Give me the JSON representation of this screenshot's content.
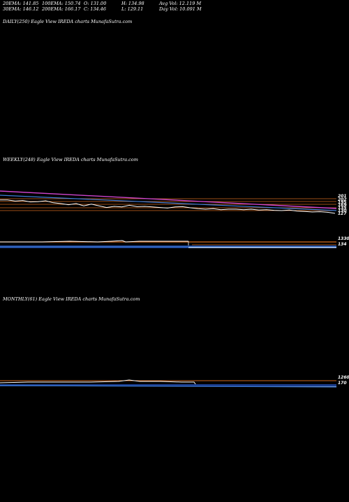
{
  "header": {
    "row1": [
      "20EMA: 141.85",
      "100EMA: 150.74",
      "O: 131.00",
      "H: 134.98",
      "Avg Vol: 12.119 M"
    ],
    "row2": [
      "30EMA: 146.12",
      "200EMA: 166.17",
      "C: 134.46",
      "L: 129.11",
      "Day Vol: 10.091 M"
    ]
  },
  "panels": {
    "daily": {
      "title": "DAILY(250) Eagle  View  IREDA charts MunafaSutra.com"
    },
    "weekly": {
      "title": "WEEKLY(248) Eagle  View  IREDA charts MunafaSutra.com"
    },
    "monthly": {
      "title": "MONTHLY(61) Eagle  View  IREDA charts MunafaSutra.com"
    }
  },
  "chart_data": [
    {
      "type": "line",
      "panel": "weekly",
      "price_axis_labels": [
        "201",
        "202",
        "195",
        "169",
        "135",
        "130",
        "127"
      ],
      "volume_axis_labels": [
        "1330",
        "134"
      ],
      "series": [
        {
          "values": [
            193,
            193,
            189,
            191,
            186,
            187,
            190,
            183,
            180,
            176,
            180,
            172,
            178,
            172,
            166,
            170,
            168,
            174,
            169,
            170,
            168,
            166,
            164,
            168,
            169,
            165,
            162,
            160,
            162,
            158,
            160,
            160,
            158,
            160,
            157,
            158,
            156,
            155,
            157,
            153,
            152,
            150,
            151,
            149,
            145
          ]
        }
      ],
      "colors": {
        "price": "#ffffff",
        "ema_slow": "#cc44cc",
        "ema_mid": "#3d7bd6",
        "levels": "#d2691e"
      }
    },
    {
      "type": "line",
      "panel": "monthly",
      "price_axis_labels": [
        "1260",
        "170"
      ],
      "colors": {
        "price": "#ffffff",
        "volume": "#3d7bd6",
        "levels": "#d2691e"
      }
    }
  ]
}
